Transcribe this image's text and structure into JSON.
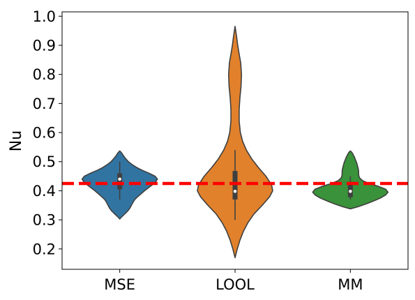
{
  "chart_data": {
    "type": "violin",
    "title": "",
    "xlabel": "",
    "ylabel": "Nu",
    "ylim": [
      0.13,
      1.015
    ],
    "yticks": [
      0.2,
      0.3,
      0.4,
      0.5,
      0.6,
      0.7,
      0.8,
      0.9,
      1.0
    ],
    "ytick_labels": [
      "0.2",
      "0.3",
      "0.4",
      "0.5",
      "0.6",
      "0.7",
      "0.8",
      "0.9",
      "1.0"
    ],
    "categories": [
      "MSE",
      "LOOL",
      "MM"
    ],
    "reference_line": {
      "value": 0.425,
      "color": "#ff0000",
      "style": "dashed"
    },
    "grid": false,
    "violins": [
      {
        "category": "MSE",
        "color": "#3274a1",
        "median": 0.44,
        "q1": 0.405,
        "q3": 0.46,
        "whisker_low": 0.37,
        "whisker_high": 0.5,
        "min": 0.303,
        "max": 0.537,
        "density": [
          [
            0.303,
            0.0
          ],
          [
            0.31,
            0.05
          ],
          [
            0.32,
            0.13
          ],
          [
            0.33,
            0.21
          ],
          [
            0.34,
            0.27
          ],
          [
            0.35,
            0.31
          ],
          [
            0.36,
            0.35
          ],
          [
            0.37,
            0.4
          ],
          [
            0.38,
            0.48
          ],
          [
            0.39,
            0.57
          ],
          [
            0.4,
            0.66
          ],
          [
            0.41,
            0.76
          ],
          [
            0.42,
            0.86
          ],
          [
            0.43,
            0.95
          ],
          [
            0.44,
            1.0
          ],
          [
            0.45,
            0.94
          ],
          [
            0.46,
            0.78
          ],
          [
            0.47,
            0.6
          ],
          [
            0.48,
            0.45
          ],
          [
            0.49,
            0.33
          ],
          [
            0.5,
            0.23
          ],
          [
            0.51,
            0.16
          ],
          [
            0.52,
            0.1
          ],
          [
            0.53,
            0.05
          ],
          [
            0.537,
            0.0
          ]
        ]
      },
      {
        "category": "LOOL",
        "color": "#e1812c",
        "median": 0.398,
        "q1": 0.37,
        "q3": 0.468,
        "whisker_low": 0.3,
        "whisker_high": 0.54,
        "min": 0.17,
        "max": 0.965,
        "density": [
          [
            0.17,
            0.0
          ],
          [
            0.2,
            0.06
          ],
          [
            0.23,
            0.13
          ],
          [
            0.26,
            0.22
          ],
          [
            0.29,
            0.34
          ],
          [
            0.32,
            0.5
          ],
          [
            0.35,
            0.72
          ],
          [
            0.38,
            0.92
          ],
          [
            0.4,
            1.0
          ],
          [
            0.42,
            0.97
          ],
          [
            0.45,
            0.82
          ],
          [
            0.48,
            0.62
          ],
          [
            0.51,
            0.44
          ],
          [
            0.54,
            0.3
          ],
          [
            0.57,
            0.2
          ],
          [
            0.6,
            0.14
          ],
          [
            0.64,
            0.11
          ],
          [
            0.68,
            0.11
          ],
          [
            0.72,
            0.13
          ],
          [
            0.76,
            0.16
          ],
          [
            0.8,
            0.17
          ],
          [
            0.84,
            0.15
          ],
          [
            0.87,
            0.11
          ],
          [
            0.9,
            0.07
          ],
          [
            0.93,
            0.04
          ],
          [
            0.965,
            0.0
          ]
        ]
      },
      {
        "category": "MM",
        "color": "#3a923a",
        "median": 0.398,
        "q1": 0.378,
        "q3": 0.42,
        "whisker_low": 0.37,
        "whisker_high": 0.45,
        "min": 0.338,
        "max": 0.537,
        "density": [
          [
            0.338,
            0.0
          ],
          [
            0.345,
            0.2
          ],
          [
            0.355,
            0.42
          ],
          [
            0.365,
            0.62
          ],
          [
            0.375,
            0.8
          ],
          [
            0.385,
            0.93
          ],
          [
            0.395,
            1.0
          ],
          [
            0.405,
            0.94
          ],
          [
            0.415,
            0.75
          ],
          [
            0.425,
            0.5
          ],
          [
            0.435,
            0.32
          ],
          [
            0.445,
            0.24
          ],
          [
            0.455,
            0.22
          ],
          [
            0.465,
            0.22
          ],
          [
            0.475,
            0.21
          ],
          [
            0.485,
            0.19
          ],
          [
            0.495,
            0.17
          ],
          [
            0.505,
            0.14
          ],
          [
            0.515,
            0.11
          ],
          [
            0.525,
            0.07
          ],
          [
            0.532,
            0.04
          ],
          [
            0.537,
            0.0
          ]
        ]
      }
    ]
  }
}
